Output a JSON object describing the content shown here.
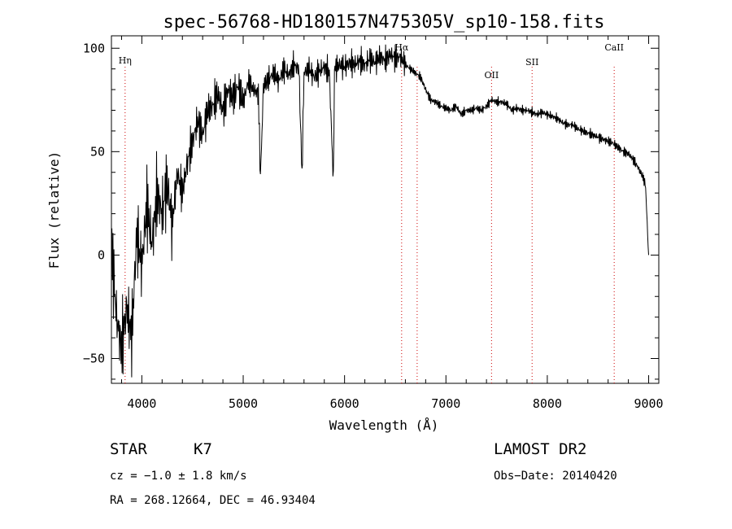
{
  "chart_data": {
    "type": "line",
    "title": "spec-56768-HD180157N475305V_sp10-158.fits",
    "xlabel": "Wavelength (Å)",
    "ylabel": "Flux (relative)",
    "xlim": [
      3700,
      9100
    ],
    "ylim": [
      -62,
      106
    ],
    "x_ticks": [
      4000,
      5000,
      6000,
      7000,
      8000,
      9000
    ],
    "y_ticks": [
      -50,
      0,
      50,
      100
    ],
    "grid": false,
    "line_color": "#000000",
    "marker_color": "#cc0000",
    "spectral_lines": [
      {
        "label": "Hη",
        "wavelength": 3835
      },
      {
        "label": "Hα",
        "wavelength": 6563
      },
      {
        "label": "",
        "wavelength": 6716
      },
      {
        "label": "OII",
        "wavelength": 7450
      },
      {
        "label": "SII",
        "wavelength": 7850
      },
      {
        "label": "CaII",
        "wavelength": 8660
      }
    ],
    "series": [
      {
        "x": [
          3700,
          3750,
          3800,
          3850,
          3900,
          3950,
          4000,
          4050,
          4100,
          4150,
          4200,
          4250,
          4300,
          4350,
          4400,
          4450,
          4500,
          4550,
          4600,
          4650,
          4700,
          4750,
          4800,
          4850,
          4900,
          4950,
          5000,
          5050,
          5100,
          5150,
          5170,
          5200,
          5250,
          5300,
          5350,
          5400,
          5450,
          5500,
          5550,
          5580,
          5600,
          5650,
          5700,
          5750,
          5800,
          5850,
          5890,
          5900,
          5950,
          6000,
          6050,
          6100,
          6150,
          6200,
          6250,
          6300,
          6350,
          6400,
          6450,
          6500,
          6550,
          6600,
          6650,
          6700,
          6750,
          6800,
          6850,
          6900,
          6950,
          7000,
          7050,
          7100,
          7150,
          7200,
          7250,
          7300,
          7350,
          7400,
          7450,
          7500,
          7550,
          7600,
          7650,
          7700,
          7750,
          7800,
          7850,
          7900,
          7950,
          8000,
          8050,
          8100,
          8150,
          8200,
          8250,
          8300,
          8350,
          8400,
          8450,
          8500,
          8550,
          8600,
          8650,
          8700,
          8750,
          8800,
          8850,
          8900,
          8950,
          8970,
          8990,
          9000
        ],
        "y": [
          5,
          -30,
          -45,
          -25,
          -40,
          10,
          -5,
          25,
          5,
          30,
          20,
          35,
          15,
          40,
          30,
          45,
          55,
          65,
          58,
          70,
          72,
          78,
          70,
          80,
          76,
          82,
          74,
          84,
          80,
          78,
          37,
          82,
          85,
          88,
          84,
          90,
          87,
          92,
          90,
          38,
          88,
          90,
          86,
          89,
          91,
          88,
          35,
          90,
          92,
          91,
          93,
          92,
          94,
          92,
          95,
          93,
          96,
          94,
          97,
          95,
          96,
          92,
          90,
          88,
          86,
          80,
          75,
          74,
          72,
          71,
          70,
          72,
          68,
          70,
          70,
          71,
          70,
          72,
          75,
          74,
          74,
          73,
          70,
          71,
          70,
          70,
          69,
          68,
          69,
          68,
          67,
          66,
          64,
          63,
          63,
          61,
          60,
          59,
          58,
          57,
          56,
          55,
          54,
          52,
          50,
          49,
          46,
          42,
          37,
          33,
          10,
          0
        ]
      }
    ]
  },
  "footer": {
    "object_type": "STAR",
    "subclass": "K7",
    "survey": "LAMOST DR2",
    "cz": "cz = −1.0 ± 1.8 km/s",
    "obs_date": "Obs−Date: 20140420",
    "coords": "RA = 268.12664, DEC =  46.93404"
  }
}
